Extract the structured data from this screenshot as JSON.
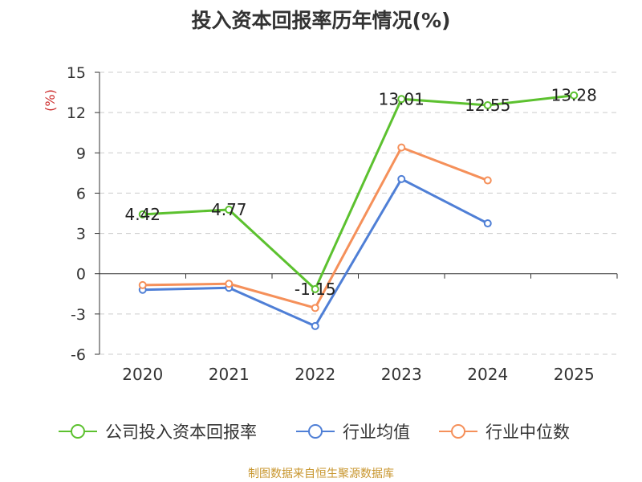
{
  "title": "投入资本回报率历年情况(%)",
  "source": "制图数据来自恒生聚源数据库",
  "chart_data": {
    "type": "line",
    "title": "投入资本回报率历年情况(%)",
    "ylabel": "(%)",
    "xlabel": "",
    "categories": [
      "2020",
      "2021",
      "2022",
      "2023",
      "2024",
      "2025"
    ],
    "ylim": [
      -6,
      15
    ],
    "yticks": [
      -6,
      -3,
      0,
      3,
      6,
      9,
      12,
      15
    ],
    "grid": true,
    "legend_position": "bottom",
    "series": [
      {
        "name": "公司投入资本回报率",
        "color": "#5cc12f",
        "values": [
          4.42,
          4.77,
          -1.15,
          13.01,
          12.55,
          13.28
        ],
        "labels": [
          "4.42",
          "4.77",
          "-1.15",
          "13.01",
          "12.55",
          "13.28"
        ]
      },
      {
        "name": "行业均值",
        "color": "#4f7fd6",
        "values": [
          -1.2,
          -1.05,
          -3.9,
          7.05,
          3.75,
          null
        ]
      },
      {
        "name": "行业中位数",
        "color": "#f5905a",
        "values": [
          -0.85,
          -0.75,
          -2.55,
          9.4,
          6.95,
          null
        ]
      }
    ]
  }
}
